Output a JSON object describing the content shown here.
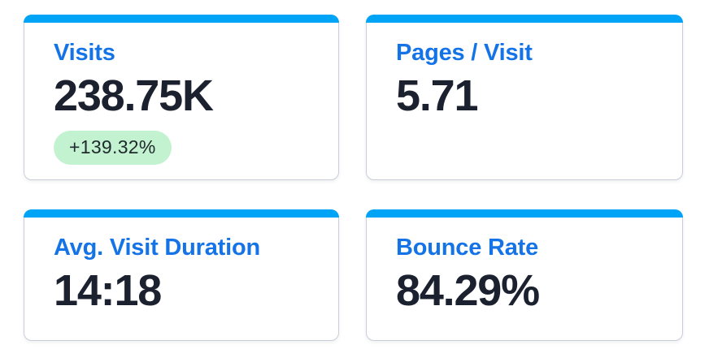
{
  "colors": {
    "accent_bar": "#00A4F6",
    "title_text": "#1473E6",
    "value_text": "#1C2130",
    "badge_background": "#C3F2D0",
    "badge_text": "#202B2E",
    "card_border": "#C9CEDA"
  },
  "cards": [
    {
      "id": "visits",
      "title": "Visits",
      "value": "238.75K",
      "change_badge": "+139.32%"
    },
    {
      "id": "pages-per-visit",
      "title": "Pages / Visit",
      "value": "5.71"
    },
    {
      "id": "avg-visit-duration",
      "title": "Avg. Visit Duration",
      "value": "14:18"
    },
    {
      "id": "bounce-rate",
      "title": "Bounce Rate",
      "value": "84.29%"
    }
  ]
}
